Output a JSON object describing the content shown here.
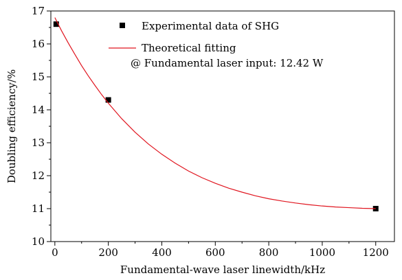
{
  "chart_data": {
    "type": "scatter",
    "xlabel": "Fundamental-wave laser linewidth/kHz",
    "ylabel": "Doubling efficiency/%",
    "xlim": [
      -15,
      1270
    ],
    "ylim": [
      10,
      17
    ],
    "x_ticks": [
      0,
      200,
      400,
      600,
      800,
      1000,
      1200
    ],
    "y_ticks": [
      10,
      11,
      12,
      13,
      14,
      15,
      16,
      17
    ],
    "grid": false,
    "legend_placement": "top-center",
    "annotation": "@ Fundamental laser input: 12.42 W",
    "series": [
      {
        "name": "Experimental data of SHG",
        "kind": "scatter",
        "marker": "square",
        "color": "#000000",
        "x": [
          5,
          200,
          1200
        ],
        "y": [
          16.6,
          14.3,
          11.0
        ]
      },
      {
        "name": "Theoretical fitting",
        "kind": "line",
        "color": "#e0141e",
        "x": [
          0,
          25,
          50,
          75,
          100,
          125,
          150,
          175,
          200,
          250,
          300,
          350,
          400,
          450,
          500,
          550,
          600,
          650,
          700,
          750,
          800,
          850,
          900,
          950,
          1000,
          1050,
          1100,
          1150,
          1200
        ],
        "y": [
          16.8,
          16.4,
          16.03,
          15.68,
          15.34,
          15.03,
          14.74,
          14.46,
          14.2,
          13.73,
          13.32,
          12.96,
          12.65,
          12.38,
          12.14,
          11.94,
          11.77,
          11.62,
          11.5,
          11.39,
          11.3,
          11.23,
          11.17,
          11.12,
          11.08,
          11.05,
          11.03,
          11.01,
          11.0
        ]
      }
    ]
  }
}
